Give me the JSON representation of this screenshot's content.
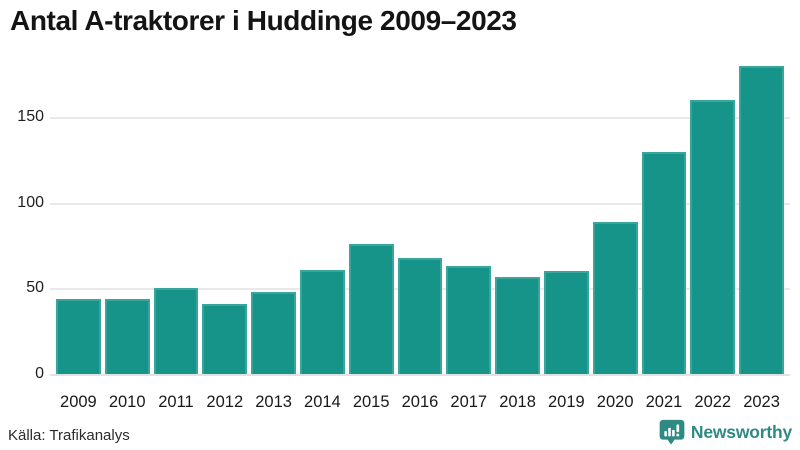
{
  "chart_data": {
    "type": "bar",
    "title": "Antal A-traktorer i Huddinge 2009–2023",
    "categories": [
      "2009",
      "2010",
      "2011",
      "2012",
      "2013",
      "2014",
      "2015",
      "2016",
      "2017",
      "2018",
      "2019",
      "2020",
      "2021",
      "2022",
      "2023"
    ],
    "values": [
      44,
      44,
      50,
      41,
      48,
      61,
      76,
      68,
      63,
      57,
      60,
      89,
      130,
      160,
      180
    ],
    "xlabel": "",
    "ylabel": "",
    "yticks": [
      0,
      50,
      100,
      150
    ],
    "ylim": [
      0,
      185
    ],
    "grid": "horizontal",
    "legend": "none",
    "bar_color": "#17948a",
    "bar_edge_color": "#3aa59b"
  },
  "footer": {
    "source_label": "Källa: Trafikanalys",
    "brand_name": "Newsworthy"
  },
  "colors": {
    "title_text": "#141414",
    "axis_text": "#1f1f1f",
    "grid": "#e9e9e9",
    "brand_teal": "#2f8a84",
    "background": "#ffffff"
  }
}
